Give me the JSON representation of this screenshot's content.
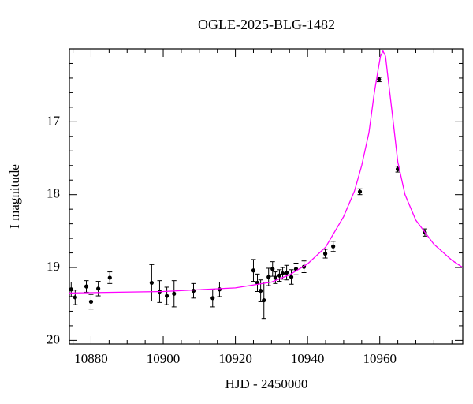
{
  "chart_data": {
    "type": "scatter",
    "title": "OGLE-2025-BLG-1482",
    "x_label": "HJD - 2450000",
    "y_label": "I magnitude",
    "xlim": [
      10874,
      10983
    ],
    "ylim": [
      20.05,
      16.0
    ],
    "xticks": [
      10880,
      10900,
      10920,
      10940,
      10960
    ],
    "yticks": [
      17,
      18,
      19,
      20
    ],
    "x_minor_ticks": [
      10875,
      10885,
      10890,
      10895,
      10905,
      10910,
      10915,
      10925,
      10930,
      10935,
      10945,
      10950,
      10955,
      10965,
      10970,
      10975,
      10980
    ],
    "y_minor_ticks": [
      16.2,
      16.4,
      16.6,
      16.8,
      17.2,
      17.4,
      17.6,
      17.8,
      18.2,
      18.4,
      18.6,
      18.8,
      19.2,
      19.4,
      19.6,
      19.8
    ],
    "series": [
      {
        "style": "points",
        "color": "#000000",
        "x": [
          10874.5,
          10875.6,
          10878.7,
          10880.0,
          10882.0,
          10885.2,
          10896.8,
          10899.0,
          10901.0,
          10903.0,
          10908.4,
          10913.7,
          10915.6,
          10925.0,
          10926.1,
          10927.0,
          10927.9,
          10929.2,
          10930.3,
          10931.1,
          10932.2,
          10933.1,
          10934.2,
          10935.5,
          10936.8,
          10939.0,
          10944.9,
          10947.1,
          10954.5,
          10959.8,
          10965.0,
          10972.5
        ],
        "values": [
          19.3,
          19.41,
          19.26,
          19.47,
          19.29,
          19.14,
          19.21,
          19.33,
          19.39,
          19.36,
          19.32,
          19.42,
          19.3,
          19.04,
          19.21,
          19.32,
          19.45,
          19.13,
          19.02,
          19.14,
          19.11,
          19.08,
          19.07,
          19.13,
          19.02,
          18.99,
          18.81,
          18.71,
          17.96,
          16.42,
          17.65,
          18.52
        ],
        "errors": [
          0.1,
          0.1,
          0.08,
          0.1,
          0.1,
          0.08,
          0.25,
          0.15,
          0.12,
          0.18,
          0.1,
          0.12,
          0.1,
          0.15,
          0.12,
          0.15,
          0.25,
          0.12,
          0.1,
          0.08,
          0.08,
          0.08,
          0.1,
          0.1,
          0.08,
          0.08,
          0.06,
          0.07,
          0.04,
          0.03,
          0.04,
          0.05
        ]
      },
      {
        "style": "line",
        "color": "#ff00ff",
        "x": [
          10874,
          10900,
          10920,
          10930,
          10935,
          10940,
          10945,
          10950,
          10953,
          10955,
          10957,
          10958.5,
          10959.5,
          10960.2,
          10960.9,
          10961.6,
          10962.3,
          10963.5,
          10965,
          10967,
          10970,
          10975,
          10980,
          10983
        ],
        "values": [
          19.35,
          19.33,
          19.28,
          19.2,
          19.1,
          18.95,
          18.72,
          18.3,
          17.95,
          17.6,
          17.15,
          16.6,
          16.3,
          16.1,
          16.03,
          16.1,
          16.4,
          16.9,
          17.55,
          18.0,
          18.35,
          18.68,
          18.9,
          19.0
        ]
      }
    ]
  }
}
